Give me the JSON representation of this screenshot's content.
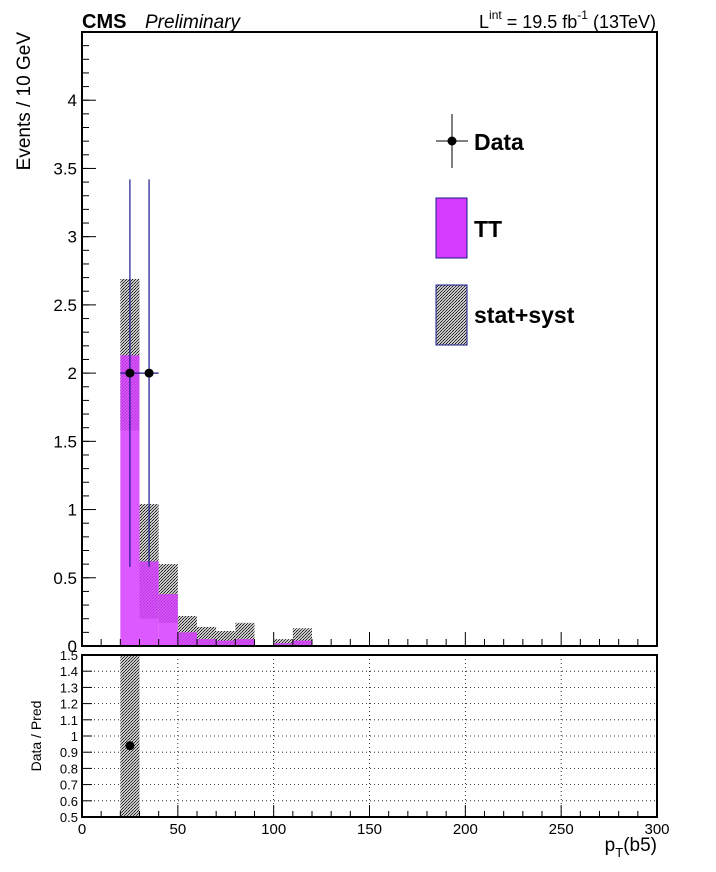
{
  "header": {
    "experiment": "CMS",
    "status": "Preliminary",
    "lumi_prefix": "L",
    "lumi_sup": "int",
    "lumi_value": " = 19.5 fb",
    "lumi_exp": "-1",
    "lumi_energy": " (13TeV)"
  },
  "legend": {
    "data": "Data",
    "tt": "TT",
    "syst": "stat+syst"
  },
  "colors": {
    "tt": "#d63cff",
    "tt_edge": "#1a1a8c",
    "data": "#000000",
    "axis": "#000000",
    "grid": "#000000"
  },
  "chart_data": [
    {
      "type": "bar",
      "xlabel": "p_T(b5)",
      "xlabel_main": "p",
      "xlabel_sub": "T",
      "xlabel_tail": "(b5)",
      "ylabel": "Events / 10 GeV",
      "xlim": [
        0,
        300
      ],
      "ylim": [
        0,
        4.5
      ],
      "xticks": [
        0,
        50,
        100,
        150,
        200,
        250,
        300
      ],
      "yticks": [
        0,
        0.5,
        1,
        1.5,
        2,
        2.5,
        3,
        3.5,
        4
      ],
      "ytick_labels": [
        "0",
        "0.5",
        "1",
        "1.5",
        "2",
        "2.5",
        "3",
        "3.5",
        "4"
      ],
      "bin_width": 10,
      "series": [
        {
          "name": "TT",
          "bins": [
            {
              "low": 20,
              "high": 30,
              "value": 2.13
            },
            {
              "low": 30,
              "high": 40,
              "value": 0.62
            },
            {
              "low": 40,
              "high": 50,
              "value": 0.38
            },
            {
              "low": 50,
              "high": 60,
              "value": 0.1
            },
            {
              "low": 60,
              "high": 70,
              "value": 0.05
            },
            {
              "low": 70,
              "high": 80,
              "value": 0.04
            },
            {
              "low": 80,
              "high": 90,
              "value": 0.05
            },
            {
              "low": 100,
              "high": 110,
              "value": 0.02
            },
            {
              "low": 110,
              "high": 120,
              "value": 0.04
            }
          ]
        },
        {
          "name": "stat+syst",
          "bands": [
            {
              "low": 20,
              "high": 30,
              "lo": 1.58,
              "hi": 2.69
            },
            {
              "low": 30,
              "high": 40,
              "lo": 0.2,
              "hi": 1.04
            },
            {
              "low": 40,
              "high": 50,
              "lo": 0.17,
              "hi": 0.6
            },
            {
              "low": 50,
              "high": 60,
              "lo": 0.0,
              "hi": 0.22
            },
            {
              "low": 60,
              "high": 70,
              "lo": 0.0,
              "hi": 0.14
            },
            {
              "low": 70,
              "high": 80,
              "lo": 0.0,
              "hi": 0.11
            },
            {
              "low": 80,
              "high": 90,
              "lo": 0.0,
              "hi": 0.17
            },
            {
              "low": 100,
              "high": 110,
              "lo": 0.0,
              "hi": 0.05
            },
            {
              "low": 110,
              "high": 120,
              "lo": 0.0,
              "hi": 0.13
            }
          ]
        },
        {
          "name": "Data",
          "points": [
            {
              "x": 25,
              "y": 2,
              "ylo": 0.58,
              "yhi": 3.42
            },
            {
              "x": 35,
              "y": 2,
              "ylo": 0.58,
              "yhi": 3.42
            }
          ]
        }
      ]
    },
    {
      "type": "scatter",
      "xlabel": "",
      "ylabel": "Data / Pred",
      "xlim": [
        0,
        300
      ],
      "ylim": [
        0.5,
        1.5
      ],
      "xticks": [
        0,
        50,
        100,
        150,
        200,
        250,
        300
      ],
      "yticks": [
        0.5,
        0.6,
        0.7,
        0.8,
        0.9,
        1,
        1.1,
        1.2,
        1.3,
        1.4,
        1.5
      ],
      "ytick_labels": [
        "0.5",
        "0.6",
        "0.7",
        "0.8",
        "0.9",
        "1",
        "1.1",
        "1.2",
        "1.3",
        "1.4",
        "1.5"
      ],
      "grid": true,
      "series": [
        {
          "name": "Data",
          "points": [
            {
              "x": 25,
              "y": 0.94
            }
          ]
        },
        {
          "name": "stat+syst",
          "bands": [
            {
              "low": 20,
              "high": 30,
              "lo": 0.5,
              "hi": 1.5
            }
          ]
        }
      ]
    }
  ]
}
